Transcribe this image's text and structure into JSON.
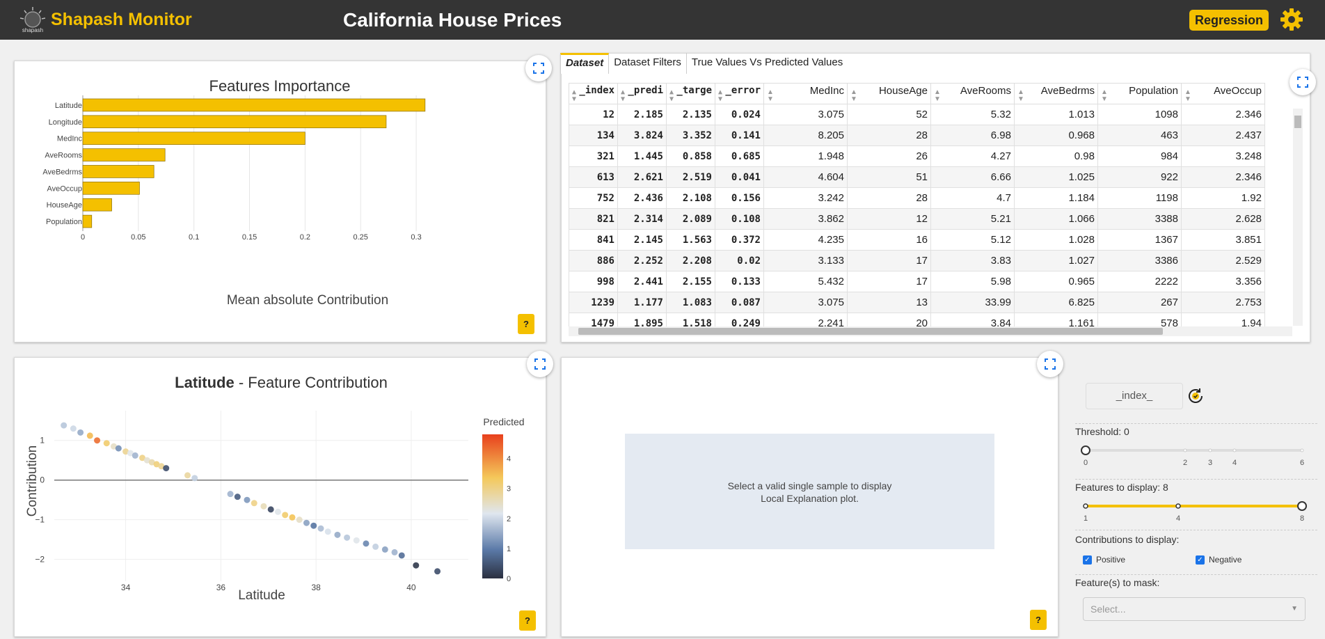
{
  "header": {
    "brand": "Shapash Monitor",
    "title": "California House Prices",
    "mode_button": "Regression"
  },
  "importance": {
    "title": "Features Importance",
    "xlabel": "Mean absolute Contribution",
    "help": "?"
  },
  "chart_data": [
    {
      "type": "bar",
      "title": "Features Importance",
      "xlabel": "Mean absolute Contribution",
      "orientation": "horizontal",
      "categories": [
        "Latitude",
        "Longitude",
        "MedInc",
        "AveRooms",
        "AveBedrms",
        "AveOccup",
        "HouseAge",
        "Population"
      ],
      "values": [
        0.308,
        0.273,
        0.2,
        0.074,
        0.064,
        0.051,
        0.026,
        0.008
      ],
      "xlim": [
        0,
        0.32
      ],
      "xticks": [
        0,
        0.05,
        0.1,
        0.15,
        0.2,
        0.25,
        0.3
      ],
      "xtick_labels": [
        "0",
        "0.05",
        "0.1",
        "0.15",
        "0.2",
        "0.25",
        "0.3"
      ],
      "grid": true,
      "color": "#f4c000"
    },
    {
      "type": "scatter",
      "title": "Latitude - Feature Contribution",
      "xlabel": "Latitude",
      "ylabel": "Contribution",
      "xlim": [
        32.5,
        41.2
      ],
      "ylim": [
        -2.55,
        1.75
      ],
      "xticks": [
        34,
        36,
        38,
        40
      ],
      "yticks": [
        1,
        0,
        -1,
        -2
      ],
      "colorbar_title": "Predicted",
      "colorbar_ticks": [
        4,
        3,
        2,
        1,
        0
      ],
      "x": [
        32.7,
        32.9,
        33.05,
        33.25,
        33.4,
        33.6,
        33.75,
        33.85,
        34.0,
        34.1,
        34.2,
        34.35,
        34.45,
        34.55,
        34.65,
        34.75,
        34.85,
        35.3,
        35.45,
        36.2,
        36.35,
        36.55,
        36.7,
        36.9,
        37.05,
        37.2,
        37.35,
        37.5,
        37.65,
        37.8,
        37.95,
        38.1,
        38.25,
        38.45,
        38.65,
        38.85,
        39.05,
        39.25,
        39.45,
        39.65,
        39.8,
        40.1,
        40.55
      ],
      "y": [
        1.38,
        1.3,
        1.2,
        1.12,
        1.0,
        0.93,
        0.85,
        0.8,
        0.72,
        0.68,
        0.62,
        0.56,
        0.5,
        0.45,
        0.4,
        0.35,
        0.3,
        0.12,
        0.05,
        -0.35,
        -0.42,
        -0.5,
        -0.58,
        -0.66,
        -0.74,
        -0.8,
        -0.88,
        -0.94,
        -1.0,
        -1.08,
        -1.15,
        -1.22,
        -1.3,
        -1.38,
        -1.45,
        -1.52,
        -1.6,
        -1.68,
        -1.75,
        -1.82,
        -1.9,
        -2.15,
        -2.3
      ],
      "predicted": [
        1.8,
        2.0,
        1.5,
        3.5,
        4.3,
        3.2,
        2.5,
        1.2,
        2.9,
        2.2,
        1.6,
        3.0,
        2.4,
        2.7,
        3.1,
        2.9,
        0.4,
        2.8,
        1.9,
        1.6,
        0.6,
        1.3,
        3.0,
        2.6,
        0.3,
        2.2,
        3.2,
        3.4,
        2.5,
        1.4,
        0.9,
        1.7,
        2.1,
        1.5,
        1.8,
        2.2,
        1.1,
        1.9,
        1.4,
        1.6,
        0.8,
        0.1,
        0.4
      ]
    }
  ],
  "dataset": {
    "tabs": [
      "Dataset",
      "Dataset Filters",
      "True Values Vs Predicted Values"
    ],
    "columns": [
      "_index",
      "_predi",
      "_targe",
      "_error",
      "MedInc",
      "HouseAge",
      "AveRooms",
      "AveBedrms",
      "Population",
      "AveOccup"
    ],
    "rows": [
      [
        "12",
        "2.185",
        "2.135",
        "0.024",
        "3.075",
        "52",
        "5.32",
        "1.013",
        "1098",
        "2.346"
      ],
      [
        "134",
        "3.824",
        "3.352",
        "0.141",
        "8.205",
        "28",
        "6.98",
        "0.968",
        "463",
        "2.437"
      ],
      [
        "321",
        "1.445",
        "0.858",
        "0.685",
        "1.948",
        "26",
        "4.27",
        "0.98",
        "984",
        "3.248"
      ],
      [
        "613",
        "2.621",
        "2.519",
        "0.041",
        "4.604",
        "51",
        "6.66",
        "1.025",
        "922",
        "2.346"
      ],
      [
        "752",
        "2.436",
        "2.108",
        "0.156",
        "3.242",
        "28",
        "4.7",
        "1.184",
        "1198",
        "1.92"
      ],
      [
        "821",
        "2.314",
        "2.089",
        "0.108",
        "3.862",
        "12",
        "5.21",
        "1.066",
        "3388",
        "2.628"
      ],
      [
        "841",
        "2.145",
        "1.563",
        "0.372",
        "4.235",
        "16",
        "5.12",
        "1.028",
        "1367",
        "3.851"
      ],
      [
        "886",
        "2.252",
        "2.208",
        "0.02",
        "3.133",
        "17",
        "3.83",
        "1.027",
        "3386",
        "2.529"
      ],
      [
        "998",
        "2.441",
        "2.155",
        "0.133",
        "5.432",
        "17",
        "5.98",
        "0.965",
        "2222",
        "3.356"
      ],
      [
        "1239",
        "1.177",
        "1.083",
        "0.087",
        "3.075",
        "13",
        "33.99",
        "6.825",
        "267",
        "2.753"
      ],
      [
        "1479",
        "1.895",
        "1.518",
        "0.249",
        "2.241",
        "20",
        "3.84",
        "1.161",
        "578",
        "1.94"
      ]
    ]
  },
  "contribution": {
    "title_bold": "Latitude",
    "title_rest": " - Feature Contribution",
    "help": "?"
  },
  "local": {
    "message_line1": "Select a valid single sample to display",
    "message_line2": "Local Explanation plot.",
    "help": "?"
  },
  "controls": {
    "index_placeholder": "_index_",
    "threshold_label": "Threshold: 0",
    "threshold_value": 0,
    "threshold_ticks": [
      "0",
      "2",
      "3",
      "4",
      "6"
    ],
    "features_label": "Features to display: 8",
    "features_value": 8,
    "features_ticks": [
      "1",
      "4",
      "8"
    ],
    "contrib_label": "Contributions to display:",
    "positive_label": "Positive",
    "negative_label": "Negative",
    "mask_label": "Feature(s) to mask:",
    "mask_placeholder": "Select..."
  },
  "colors": {
    "accent": "#f4c000",
    "header_bg": "#343434",
    "link_blue": "#1a73e8"
  }
}
